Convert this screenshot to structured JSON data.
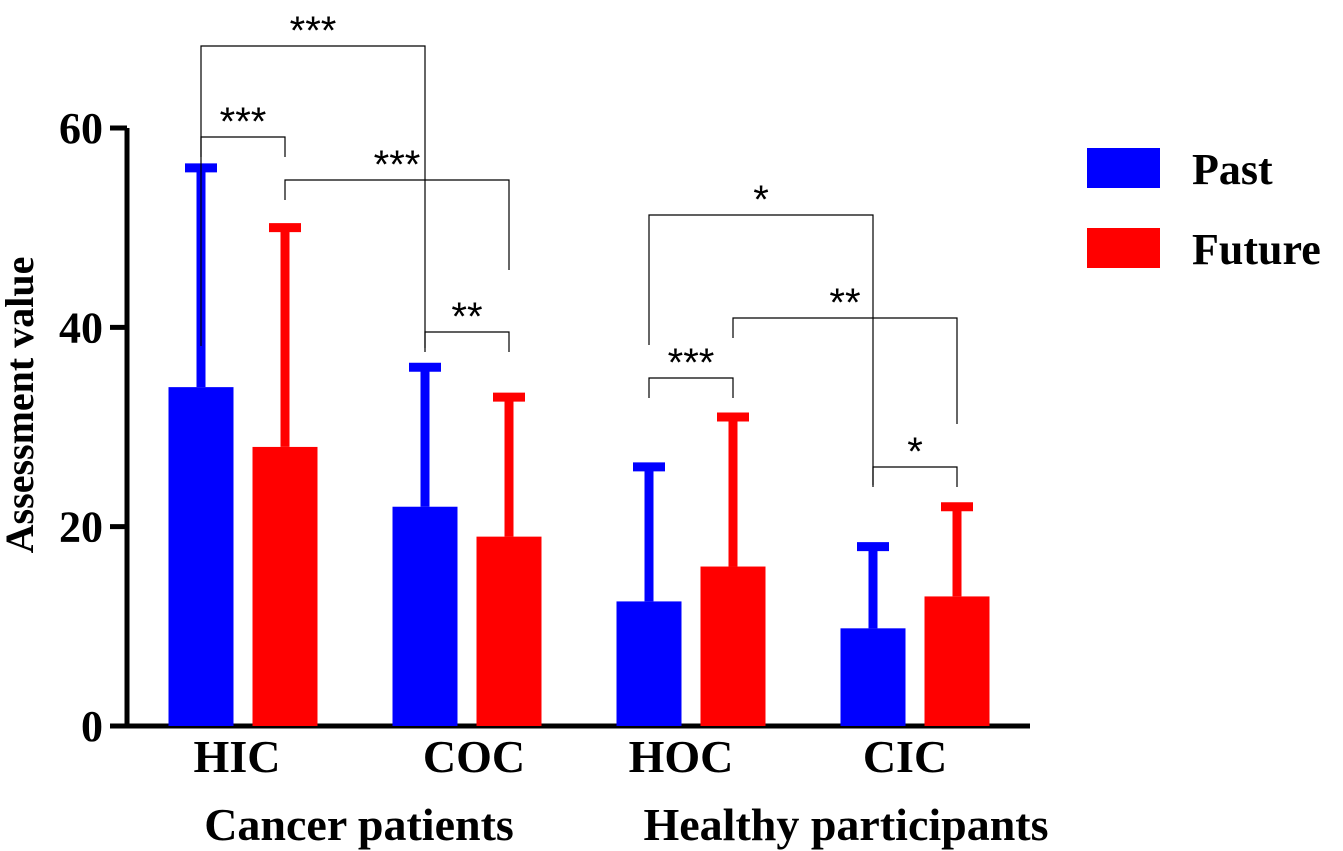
{
  "chart_data": {
    "type": "bar",
    "title": "",
    "ylabel": "Assessment value",
    "xlabel": "",
    "ylim": [
      0,
      60
    ],
    "yticks": [
      0,
      20,
      40,
      60
    ],
    "categories": [
      "HIC",
      "COC",
      "HOC",
      "CIC"
    ],
    "groups": [
      {
        "label": "Cancer patients",
        "categories": [
          "HIC",
          "COC"
        ]
      },
      {
        "label": "Healthy participants",
        "categories": [
          "HOC",
          "CIC"
        ]
      }
    ],
    "series": [
      {
        "name": "Past",
        "color": "#0000ff",
        "values": [
          34,
          22,
          12.5,
          9.8
        ],
        "error_upper": [
          56,
          36,
          26,
          18
        ]
      },
      {
        "name": "Future",
        "color": "#ff0000",
        "values": [
          28,
          19,
          16,
          13
        ],
        "error_upper": [
          50,
          33,
          31,
          22
        ]
      }
    ],
    "significance": [
      {
        "from": "HIC Past",
        "to": "HIC Future",
        "label": "***"
      },
      {
        "from": "HIC Past",
        "to": "COC Past",
        "label": "***"
      },
      {
        "from": "HIC Future",
        "to": "COC Future",
        "label": "***"
      },
      {
        "from": "COC Past",
        "to": "COC Future",
        "label": "**"
      },
      {
        "from": "HOC Past",
        "to": "HOC Future",
        "label": "***"
      },
      {
        "from": "HOC Past",
        "to": "CIC Past",
        "label": "*"
      },
      {
        "from": "HOC Future",
        "to": "CIC Future",
        "label": "**"
      },
      {
        "from": "CIC Past",
        "to": "CIC Future",
        "label": "*"
      }
    ],
    "legend": {
      "position": "right",
      "entries": [
        "Past",
        "Future"
      ]
    }
  }
}
